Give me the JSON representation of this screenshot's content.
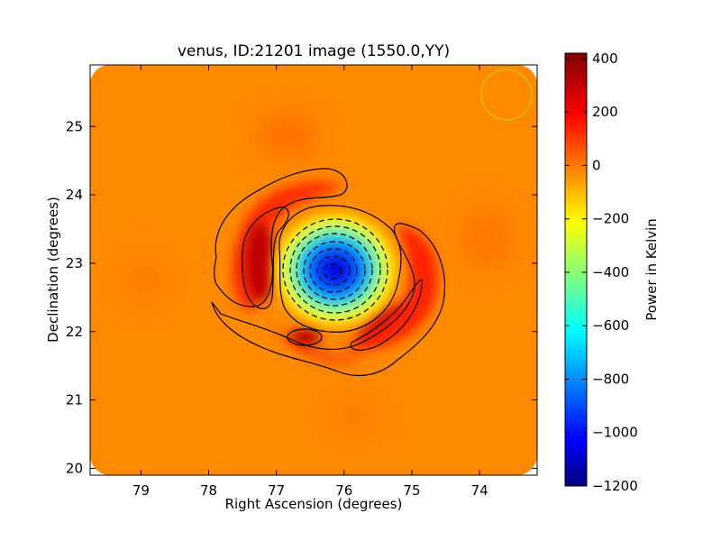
{
  "chart_data": {
    "type": "heatmap",
    "title": "venus, ID:21201 image (1550.0,YY)",
    "xlabel": "Right Ascension (degrees)",
    "ylabel": "Declination (degrees)",
    "xlim": [
      79.75,
      73.15
    ],
    "ylim": [
      19.9,
      25.9
    ],
    "x_ticks": [
      79,
      78,
      77,
      76,
      75,
      74
    ],
    "y_ticks": [
      20,
      21,
      22,
      23,
      24,
      25
    ],
    "colorbar": {
      "label": "Power in Kelvin",
      "range": [
        -1200,
        420
      ],
      "ticks": [
        400,
        200,
        0,
        -200,
        -400,
        -600,
        -800,
        -1000,
        -1200
      ],
      "tick_labels": [
        "400",
        "200",
        "0",
        "−200",
        "−400",
        "−600",
        "−800",
        "−1000",
        "−1200"
      ],
      "colormap": "jet"
    },
    "background_level": 50,
    "features": {
      "central_minimum": {
        "ra": 76.15,
        "dec": 22.85,
        "value": -1200
      },
      "ring_maxima": [
        {
          "ra": 77.3,
          "dec": 22.9,
          "value": 380
        },
        {
          "ra": 75.3,
          "dec": 22.2,
          "value": 350
        },
        {
          "ra": 76.45,
          "dec": 21.95,
          "value": 300
        },
        {
          "ra": 76.8,
          "dec": 23.6,
          "value": 250
        }
      ]
    },
    "beam_marker": {
      "ra": 73.6,
      "dec": 25.45,
      "color": "#c8c800"
    },
    "contours": "solid positive, dashed negative"
  }
}
